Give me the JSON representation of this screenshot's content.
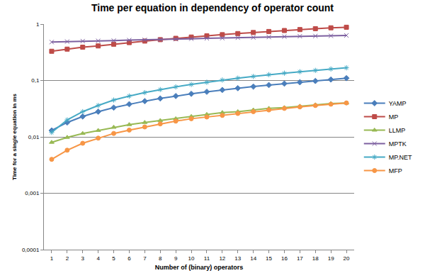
{
  "chart_data": {
    "type": "line",
    "title": "Time per equation in dependency of operator count",
    "x_label": "Number of (binary) operators",
    "y_label": "Time for a single equation in ms",
    "x": [
      1,
      2,
      3,
      4,
      5,
      6,
      7,
      8,
      9,
      10,
      11,
      12,
      13,
      14,
      15,
      16,
      17,
      18,
      19,
      20
    ],
    "xlim": [
      0.5,
      20.5
    ],
    "xticks": [
      1,
      2,
      3,
      4,
      5,
      6,
      7,
      8,
      9,
      10,
      11,
      12,
      13,
      14,
      15,
      16,
      17,
      18,
      19,
      20
    ],
    "ylim": [
      0.0001,
      1
    ],
    "yticks": [
      {
        "value": 0.0001,
        "label": "0,0001"
      },
      {
        "value": 0.001,
        "label": "0,001"
      },
      {
        "value": 0.01,
        "label": "0,01"
      },
      {
        "value": 0.1,
        "label": "0,1"
      },
      1
    ],
    "log": "y",
    "grid": true,
    "legend": "right",
    "series": [
      {
        "name": "YAMP",
        "color": "#4a7ebb",
        "marker": "diamond",
        "values": [
          0.013,
          0.018,
          0.023,
          0.028,
          0.033,
          0.038,
          0.043,
          0.048,
          0.053,
          0.058,
          0.063,
          0.068,
          0.073,
          0.078,
          0.083,
          0.088,
          0.093,
          0.098,
          0.104,
          0.11
        ]
      },
      {
        "name": "MP",
        "color": "#be4b48",
        "marker": "square",
        "values": [
          0.33,
          0.36,
          0.39,
          0.41,
          0.44,
          0.47,
          0.5,
          0.53,
          0.56,
          0.59,
          0.62,
          0.65,
          0.68,
          0.71,
          0.74,
          0.77,
          0.8,
          0.83,
          0.86,
          0.88
        ]
      },
      {
        "name": "LLMP",
        "color": "#98b954",
        "marker": "triangle",
        "values": [
          0.008,
          0.0098,
          0.0115,
          0.013,
          0.0148,
          0.0165,
          0.018,
          0.0195,
          0.021,
          0.023,
          0.025,
          0.027,
          0.028,
          0.03,
          0.032,
          0.033,
          0.035,
          0.037,
          0.039,
          0.04
        ]
      },
      {
        "name": "MPTK",
        "color": "#7d60a0",
        "marker": "x",
        "values": [
          0.48,
          0.49,
          0.5,
          0.505,
          0.51,
          0.52,
          0.525,
          0.53,
          0.54,
          0.55,
          0.56,
          0.565,
          0.575,
          0.58,
          0.59,
          0.6,
          0.61,
          0.615,
          0.62,
          0.63
        ]
      },
      {
        "name": "MP.NET",
        "color": "#46aac5",
        "marker": "star",
        "values": [
          0.012,
          0.02,
          0.028,
          0.036,
          0.045,
          0.053,
          0.061,
          0.069,
          0.077,
          0.085,
          0.093,
          0.102,
          0.11,
          0.118,
          0.127,
          0.135,
          0.143,
          0.151,
          0.16,
          0.168
        ]
      },
      {
        "name": "MFP",
        "color": "#f79646",
        "marker": "circle",
        "values": [
          0.004,
          0.0058,
          0.0077,
          0.0095,
          0.0115,
          0.0132,
          0.015,
          0.017,
          0.019,
          0.021,
          0.0225,
          0.024,
          0.026,
          0.028,
          0.03,
          0.032,
          0.034,
          0.036,
          0.038,
          0.04
        ]
      }
    ]
  }
}
